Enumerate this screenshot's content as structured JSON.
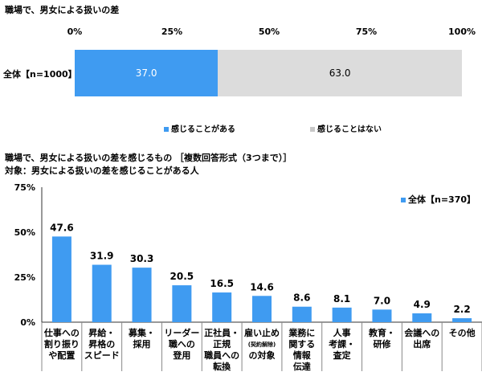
{
  "top": {
    "title": "職場で、男女による扱いの差",
    "ticks": [
      "0%",
      "25%",
      "50%",
      "75%",
      "100%"
    ],
    "row_label": "全体【n=1000】",
    "segments": [
      {
        "name": "感じることがある",
        "value": 37.0,
        "label": "37.0",
        "color": "#3f9bf1"
      },
      {
        "name": "感じることはない",
        "value": 63.0,
        "label": "63.0",
        "color": "#dcdcdc"
      }
    ]
  },
  "bottom": {
    "title_line1": "職場で、男女による扱いの差を感じるもの ［複数回答形式（3つまで）］",
    "title_line2": "対象：男女による扱いの差を感じることがある人",
    "legend": "全体【n=370】",
    "bar_color": "#3f9bf1"
  },
  "chart_data": [
    {
      "type": "bar",
      "orientation": "horizontal-stacked",
      "title": "職場で、男女による扱いの差",
      "categories": [
        "全体【n=1000】"
      ],
      "series": [
        {
          "name": "感じることがある",
          "values": [
            37.0
          ]
        },
        {
          "name": "感じることはない",
          "values": [
            63.0
          ]
        }
      ],
      "xlim": [
        0,
        100
      ],
      "legend_position": "bottom"
    },
    {
      "type": "bar",
      "title": "職場で、男女による扱いの差を感じるもの ［複数回答形式（3つまで）］",
      "yticks": [
        "0%",
        "25%",
        "50%",
        "75%"
      ],
      "ylim": [
        0,
        75
      ],
      "legend_position": "top-right",
      "categories": [
        {
          "lines": [
            "仕事への",
            "割り振り",
            "や配置"
          ]
        },
        {
          "lines": [
            "昇給・",
            "昇格の",
            "スピード"
          ]
        },
        {
          "lines": [
            "募集・",
            "採用"
          ]
        },
        {
          "lines": [
            "リーダー",
            "職への",
            "登用"
          ]
        },
        {
          "lines": [
            "正社員・",
            "正規",
            "職員への",
            "転換"
          ]
        },
        {
          "lines": [
            "雇い止め",
            "(契約解除)",
            "の対象"
          ]
        },
        {
          "lines": [
            "業務に",
            "関する",
            "情報",
            "伝達"
          ]
        },
        {
          "lines": [
            "人事",
            "考課・",
            "査定"
          ]
        },
        {
          "lines": [
            "教育・",
            "研修"
          ]
        },
        {
          "lines": [
            "会議への",
            "出席"
          ]
        },
        {
          "lines": [
            "その他"
          ]
        }
      ],
      "series": [
        {
          "name": "全体【n=370】",
          "values": [
            47.6,
            31.9,
            30.3,
            20.5,
            16.5,
            14.6,
            8.6,
            8.1,
            7.0,
            4.9,
            2.2
          ]
        }
      ]
    }
  ]
}
